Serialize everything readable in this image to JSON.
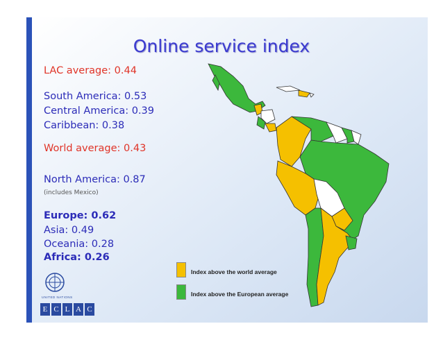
{
  "title": "Online service index",
  "stats": {
    "lac": "LAC average: 0.44",
    "south_america": "South America: 0.53",
    "central_america": "Central America: 0.39",
    "caribbean": "Caribbean: 0.38",
    "world": "World average: 0.43",
    "north_america": "North America: 0.87",
    "north_america_note": "(includes Mexico)",
    "europe": "Europe: 0.62",
    "asia": "Asia: 0.49",
    "oceania": "Oceania: 0.28",
    "africa": "Africa: 0.26"
  },
  "legend": [
    {
      "label": "Index above the world average",
      "color": "#f5c000"
    },
    {
      "label": "Index above the European average",
      "color": "#3cb83c"
    }
  ],
  "logo": {
    "un": "UNITED NATIONS",
    "eclac": [
      "E",
      "C",
      "L",
      "A",
      "C"
    ]
  }
}
